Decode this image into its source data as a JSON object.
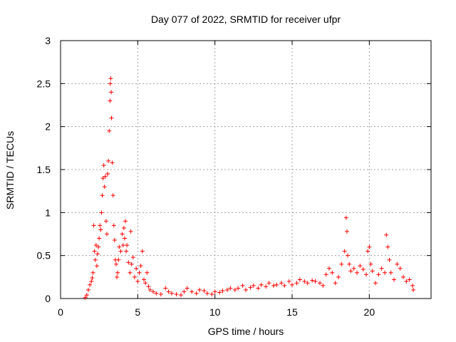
{
  "chart_data": {
    "type": "scatter",
    "title": "Day 077 of 2022, SRMTID for receiver ufpr",
    "xlabel": "GPS time / hours",
    "ylabel": "SRMTID / TECUs",
    "xlim": [
      0,
      24
    ],
    "ylim": [
      0,
      3
    ],
    "xticks": [
      0,
      5,
      10,
      15,
      20
    ],
    "yticks": [
      0,
      0.5,
      1,
      1.5,
      2,
      2.5,
      3
    ],
    "xtick_labels": [
      "0",
      "5",
      "10",
      "15",
      "20"
    ],
    "ytick_labels": [
      "0",
      "0.5",
      "1",
      "1.5",
      "2",
      "2.5",
      "3"
    ],
    "grid": true,
    "marker": "+",
    "series": [
      {
        "name": "SRMTID",
        "color": "#ff0000",
        "points": [
          [
            1.6,
            0.01
          ],
          [
            1.7,
            0.04
          ],
          [
            1.8,
            0.1
          ],
          [
            1.9,
            0.16
          ],
          [
            2.0,
            0.2
          ],
          [
            2.05,
            0.24
          ],
          [
            2.1,
            0.3
          ],
          [
            2.15,
            0.85
          ],
          [
            2.2,
            0.55
          ],
          [
            2.25,
            0.45
          ],
          [
            2.3,
            0.62
          ],
          [
            2.35,
            0.38
          ],
          [
            2.4,
            0.52
          ],
          [
            2.45,
            0.6
          ],
          [
            2.5,
            0.7
          ],
          [
            2.55,
            0.85
          ],
          [
            2.6,
            0.8
          ],
          [
            2.65,
            1.0
          ],
          [
            2.7,
            1.2
          ],
          [
            2.75,
            1.4
          ],
          [
            2.8,
            1.55
          ],
          [
            2.85,
            1.3
          ],
          [
            2.9,
            1.42
          ],
          [
            2.95,
            0.9
          ],
          [
            3.0,
            0.75
          ],
          [
            3.05,
            1.45
          ],
          [
            3.1,
            1.6
          ],
          [
            3.15,
            1.95
          ],
          [
            3.2,
            2.3
          ],
          [
            3.22,
            2.5
          ],
          [
            3.25,
            2.56
          ],
          [
            3.28,
            2.4
          ],
          [
            3.3,
            2.1
          ],
          [
            3.35,
            1.58
          ],
          [
            3.4,
            1.2
          ],
          [
            3.45,
            0.85
          ],
          [
            3.5,
            0.68
          ],
          [
            3.55,
            0.45
          ],
          [
            3.6,
            0.4
          ],
          [
            3.65,
            0.25
          ],
          [
            3.7,
            0.3
          ],
          [
            3.75,
            0.45
          ],
          [
            3.8,
            0.6
          ],
          [
            3.9,
            0.55
          ],
          [
            4.0,
            0.75
          ],
          [
            4.05,
            0.62
          ],
          [
            4.1,
            0.82
          ],
          [
            4.15,
            0.7
          ],
          [
            4.2,
            0.9
          ],
          [
            4.25,
            0.55
          ],
          [
            4.3,
            0.62
          ],
          [
            4.4,
            0.42
          ],
          [
            4.5,
            0.3
          ],
          [
            4.55,
            0.78
          ],
          [
            4.6,
            0.4
          ],
          [
            4.7,
            0.48
          ],
          [
            4.8,
            0.25
          ],
          [
            4.9,
            0.35
          ],
          [
            5.0,
            0.2
          ],
          [
            5.1,
            0.3
          ],
          [
            5.2,
            0.38
          ],
          [
            5.3,
            0.55
          ],
          [
            5.4,
            0.22
          ],
          [
            5.5,
            0.18
          ],
          [
            5.6,
            0.3
          ],
          [
            5.7,
            0.14
          ],
          [
            5.8,
            0.1
          ],
          [
            6.0,
            0.08
          ],
          [
            6.2,
            0.06
          ],
          [
            6.5,
            0.05
          ],
          [
            6.8,
            0.12
          ],
          [
            7.0,
            0.08
          ],
          [
            7.2,
            0.06
          ],
          [
            7.5,
            0.05
          ],
          [
            7.8,
            0.04
          ],
          [
            8.0,
            0.08
          ],
          [
            8.2,
            0.12
          ],
          [
            8.5,
            0.08
          ],
          [
            8.8,
            0.06
          ],
          [
            9.0,
            0.1
          ],
          [
            9.3,
            0.09
          ],
          [
            9.5,
            0.06
          ],
          [
            9.8,
            0.05
          ],
          [
            10.0,
            0.08
          ],
          [
            10.3,
            0.07
          ],
          [
            10.5,
            0.09
          ],
          [
            10.8,
            0.1
          ],
          [
            11.0,
            0.12
          ],
          [
            11.3,
            0.1
          ],
          [
            11.5,
            0.12
          ],
          [
            11.8,
            0.15
          ],
          [
            12.0,
            0.1
          ],
          [
            12.3,
            0.13
          ],
          [
            12.5,
            0.15
          ],
          [
            12.8,
            0.12
          ],
          [
            13.0,
            0.16
          ],
          [
            13.3,
            0.14
          ],
          [
            13.5,
            0.18
          ],
          [
            13.8,
            0.15
          ],
          [
            14.0,
            0.16
          ],
          [
            14.3,
            0.18
          ],
          [
            14.5,
            0.15
          ],
          [
            14.8,
            0.2
          ],
          [
            15.0,
            0.16
          ],
          [
            15.3,
            0.18
          ],
          [
            15.5,
            0.22
          ],
          [
            15.8,
            0.2
          ],
          [
            16.0,
            0.18
          ],
          [
            16.3,
            0.21
          ],
          [
            16.5,
            0.2
          ],
          [
            16.8,
            0.18
          ],
          [
            17.0,
            0.15
          ],
          [
            17.2,
            0.28
          ],
          [
            17.4,
            0.35
          ],
          [
            17.6,
            0.3
          ],
          [
            17.8,
            0.18
          ],
          [
            18.0,
            0.25
          ],
          [
            18.2,
            0.4
          ],
          [
            18.4,
            0.55
          ],
          [
            18.5,
            0.94
          ],
          [
            18.55,
            0.78
          ],
          [
            18.6,
            0.5
          ],
          [
            18.7,
            0.4
          ],
          [
            18.8,
            0.32
          ],
          [
            19.0,
            0.35
          ],
          [
            19.2,
            0.3
          ],
          [
            19.4,
            0.38
          ],
          [
            19.6,
            0.34
          ],
          [
            19.8,
            0.28
          ],
          [
            19.9,
            0.55
          ],
          [
            20.0,
            0.6
          ],
          [
            20.1,
            0.4
          ],
          [
            20.2,
            0.32
          ],
          [
            20.4,
            0.18
          ],
          [
            20.6,
            0.28
          ],
          [
            20.8,
            0.35
          ],
          [
            21.0,
            0.3
          ],
          [
            21.1,
            0.74
          ],
          [
            21.2,
            0.6
          ],
          [
            21.3,
            0.45
          ],
          [
            21.4,
            0.3
          ],
          [
            21.6,
            0.22
          ],
          [
            21.8,
            0.4
          ],
          [
            22.0,
            0.35
          ],
          [
            22.2,
            0.25
          ],
          [
            22.4,
            0.2
          ],
          [
            22.6,
            0.22
          ],
          [
            22.8,
            0.15
          ],
          [
            22.85,
            0.1
          ]
        ]
      }
    ]
  }
}
